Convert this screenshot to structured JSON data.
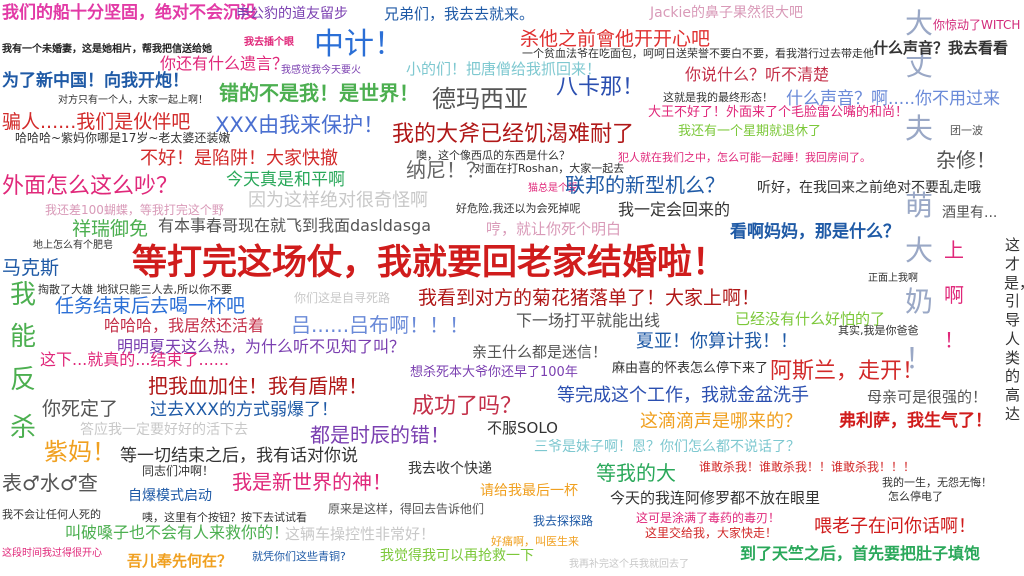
{
  "wordcloud": {
    "phrases": [
      {
        "text": "我们的船十分坚固，绝对不会沉没",
        "color": "#e23aa6",
        "weight": "bold"
      },
      {
        "text": "申公豹的道友留步",
        "color": "#7a3fb0",
        "weight": "normal"
      },
      {
        "text": "兄弟们，我去去就来。",
        "color": "#1f5aa6",
        "weight": "normal"
      },
      {
        "text": "Jackie的鼻子果然很大吧",
        "color": "#d99ab8",
        "weight": "normal"
      },
      {
        "text": "你惊动了WITCH",
        "color": "#d22a7a",
        "weight": "normal"
      },
      {
        "text": "大",
        "color": "#9aa8c6",
        "weight": "normal"
      },
      {
        "text": "丈",
        "color": "#9aa8c6",
        "weight": "normal"
      },
      {
        "text": "夫",
        "color": "#9aa8c6",
        "weight": "normal"
      },
      {
        "text": "萌",
        "color": "#9aa8c6",
        "weight": "normal"
      },
      {
        "text": "大",
        "color": "#9aa8c6",
        "weight": "normal"
      },
      {
        "text": "奶",
        "color": "#9aa8c6",
        "weight": "normal"
      },
      {
        "text": "！",
        "color": "#9aa8c6",
        "weight": "normal"
      },
      {
        "text": "我有一个未婚妻，这是她相片，帮我把信送给她",
        "color": "#222222",
        "weight": "bold"
      },
      {
        "text": "我去插个眼",
        "color": "#e0287a",
        "weight": "bold"
      },
      {
        "text": "中计！",
        "color": "#2b6fd6",
        "weight": "normal"
      },
      {
        "text": "杀他之前會他开开心吧",
        "color": "#e03030",
        "weight": "normal"
      },
      {
        "text": "什么声音？我去看看",
        "color": "#333333",
        "weight": "bold"
      },
      {
        "text": "一个贫血法爷在吃面包，呵呵日送荣誉不要白不要，看我潜行过去带走他",
        "color": "#333333",
        "weight": "normal"
      },
      {
        "text": "你还有什么遗言？",
        "color": "#e0287a",
        "weight": "normal"
      },
      {
        "text": "我感觉我今天要火",
        "color": "#7a3fb0",
        "weight": "normal"
      },
      {
        "text": "小的们！把唐僧给我抓回来！",
        "color": "#7ec8d0",
        "weight": "normal"
      },
      {
        "text": "你说什么？听不清楚",
        "color": "#c4314a",
        "weight": "normal"
      },
      {
        "text": "为了新中国！向我开炮！",
        "color": "#1f5aa6",
        "weight": "bold"
      },
      {
        "text": "八卡那！",
        "color": "#2b4fb0",
        "weight": "normal"
      },
      {
        "text": "错的不是我！是世界！",
        "color": "#4caf50",
        "weight": "bold"
      },
      {
        "text": "德玛西亚",
        "color": "#555555",
        "weight": "normal"
      },
      {
        "text": "这就是我的最终形态！",
        "color": "#333333",
        "weight": "normal"
      },
      {
        "text": "什么声音？啊.....你不用过来",
        "color": "#6a8ad8",
        "weight": "normal"
      },
      {
        "text": "对方只有一个人，大家一起上啊！",
        "color": "#333333",
        "weight": "normal"
      },
      {
        "text": "大王不好了！外面来了个毛脸雷公嘴的和尚！",
        "color": "#e0287a",
        "weight": "normal"
      },
      {
        "text": "骗人......我们是伙伴吧",
        "color": "#d22a2a",
        "weight": "normal"
      },
      {
        "text": "XXX由我来保护！",
        "color": "#4a6fd0",
        "weight": "normal"
      },
      {
        "text": "我还有一个星期就退休了",
        "color": "#7cc83a",
        "weight": "normal"
      },
      {
        "text": "团一波",
        "color": "#555555",
        "weight": "normal"
      },
      {
        "text": "哈哈哈~紫妈你哪是17岁~老太婆还装嫩",
        "color": "#333333",
        "weight": "normal"
      },
      {
        "text": "我的大斧已经饥渴难耐了",
        "color": "#b01818",
        "weight": "normal"
      },
      {
        "text": "不好！是陷阱！大家快撤",
        "color": "#d22a2a",
        "weight": "normal"
      },
      {
        "text": "噢，这个像西瓜的东西是什么？",
        "color": "#333333",
        "weight": "normal"
      },
      {
        "text": "犯人就在我们之中，怎么可能一起睡！我回房间了。",
        "color": "#e0287a",
        "weight": "normal"
      },
      {
        "text": "杂修！",
        "color": "#555555",
        "weight": "normal"
      },
      {
        "text": "纳尼！？",
        "color": "#666666",
        "weight": "normal"
      },
      {
        "text": "对面在打Roshan，大家一起去",
        "color": "#333333",
        "weight": "normal"
      },
      {
        "text": "外面怎么这么吵？",
        "color": "#e0287a",
        "weight": "normal"
      },
      {
        "text": "今天真是和平啊",
        "color": "#2aa85a",
        "weight": "normal"
      },
      {
        "text": "猫总是个受",
        "color": "#e0287a",
        "weight": "normal"
      },
      {
        "text": "联邦的新型机么？",
        "color": "#1f5aa6",
        "weight": "normal"
      },
      {
        "text": "听好，在我回来之前绝对不要乱走哦",
        "color": "#333333",
        "weight": "normal"
      },
      {
        "text": "我还差100蝴蝶，等我打完这个野",
        "color": "#d99ab8",
        "weight": "normal"
      },
      {
        "text": "因为这样绝对很奇怪啊",
        "color": "#c8c8c8",
        "weight": "normal"
      },
      {
        "text": "好危险,我还以为会死掉呢",
        "color": "#333333",
        "weight": "normal"
      },
      {
        "text": "我一定会回来的",
        "color": "#333333",
        "weight": "normal"
      },
      {
        "text": "酒里有...",
        "color": "#555555",
        "weight": "normal"
      },
      {
        "text": "祥瑞御免",
        "color": "#4caf50",
        "weight": "normal"
      },
      {
        "text": "有本事春哥现在就飞到我面dasldasga",
        "color": "#555555",
        "weight": "normal"
      },
      {
        "text": "哼，就让你死个明白",
        "color": "#d99ab8",
        "weight": "normal"
      },
      {
        "text": "看啊妈妈，那是什么？",
        "color": "#1f5aa6",
        "weight": "bold"
      },
      {
        "text": "地上怎么有个肥皂",
        "color": "#333333",
        "weight": "normal"
      },
      {
        "text": "等打完这场仗，我就要回老家结婚啦！",
        "color": "#d01c1c",
        "weight": "bold"
      },
      {
        "text": "上",
        "color": "#e0287a",
        "weight": "normal"
      },
      {
        "text": "啊",
        "color": "#e0287a",
        "weight": "normal"
      },
      {
        "text": "！",
        "color": "#e0287a",
        "weight": "normal"
      },
      {
        "text": "这才是，引导人类的高达",
        "color": "#333333",
        "weight": "normal"
      },
      {
        "text": "马克斯",
        "color": "#1f5aa6",
        "weight": "normal"
      },
      {
        "text": "正面上我啊",
        "color": "#333333",
        "weight": "normal"
      },
      {
        "text": "我",
        "color": "#4caf50",
        "weight": "normal"
      },
      {
        "text": "能",
        "color": "#4caf50",
        "weight": "normal"
      },
      {
        "text": "反",
        "color": "#4caf50",
        "weight": "normal"
      },
      {
        "text": "杀",
        "color": "#4caf50",
        "weight": "normal"
      },
      {
        "text": "掏散了大雄 地狱只能三人去,所以你不要",
        "color": "#333333",
        "weight": "normal"
      },
      {
        "text": "任务结束后去喝一杯吧",
        "color": "#2b6fd6",
        "weight": "normal"
      },
      {
        "text": "你们这是自寻死路",
        "color": "#c8c8c8",
        "weight": "normal"
      },
      {
        "text": "我看到对方的菊花猪落单了！大家上啊！",
        "color": "#b01818",
        "weight": "normal"
      },
      {
        "text": "哈哈哈，我居然还活着",
        "color": "#c4314a",
        "weight": "normal"
      },
      {
        "text": "吕......吕布啊！！！",
        "color": "#6a8ad8",
        "weight": "normal"
      },
      {
        "text": "下一场打平就能出线",
        "color": "#555555",
        "weight": "normal"
      },
      {
        "text": "已经没有什么好怕的了",
        "color": "#7cc83a",
        "weight": "normal"
      },
      {
        "text": "其实,我是你爸爸",
        "color": "#333333",
        "weight": "normal"
      },
      {
        "text": "明明夏天这么热，为什么听不见知了叫？",
        "color": "#7a3fb0",
        "weight": "normal"
      },
      {
        "text": "亲王什么都是迷信！",
        "color": "#555555",
        "weight": "normal"
      },
      {
        "text": "夏亚！你算计我！！",
        "color": "#1f5aa6",
        "weight": "normal"
      },
      {
        "text": "这下...就真的...结束了......",
        "color": "#e0287a",
        "weight": "normal"
      },
      {
        "text": "把我血加住！我有盾牌！",
        "color": "#b01818",
        "weight": "normal"
      },
      {
        "text": "想杀死本大爷你还早了100年",
        "color": "#7a3fb0",
        "weight": "normal"
      },
      {
        "text": "麻由喜的怀表怎么停下来了",
        "color": "#333333",
        "weight": "normal"
      },
      {
        "text": "阿斯兰，走开！",
        "color": "#d22a2a",
        "weight": "normal"
      },
      {
        "text": "你死定了",
        "color": "#555555",
        "weight": "normal"
      },
      {
        "text": "过去XXX的方式弱爆了！",
        "color": "#1f5aa6",
        "weight": "normal"
      },
      {
        "text": "成功了吗？",
        "color": "#c4314a",
        "weight": "normal"
      },
      {
        "text": "等完成这个工作，我就金盆洗手",
        "color": "#2b4fb0",
        "weight": "normal"
      },
      {
        "text": "母亲可是很强的！",
        "color": "#555555",
        "weight": "normal"
      },
      {
        "text": "答应我一定要好好的活下去",
        "color": "#c8c8c8",
        "weight": "normal"
      },
      {
        "text": "都是时辰的错！",
        "color": "#7a3fb0",
        "weight": "normal"
      },
      {
        "text": "不服SOLO",
        "color": "#333333",
        "weight": "normal"
      },
      {
        "text": "这滴滴声是哪来的？",
        "color": "#f0a020",
        "weight": "normal"
      },
      {
        "text": "弗利萨，我生气了！",
        "color": "#d01c1c",
        "weight": "bold"
      },
      {
        "text": "紫妈！",
        "color": "#f0a020",
        "weight": "normal"
      },
      {
        "text": "等一切结束之后，我有话对你说",
        "color": "#333333",
        "weight": "normal"
      },
      {
        "text": "三爷是妹子啊！恩？你们怎么都不说话了？",
        "color": "#7ec8d0",
        "weight": "normal"
      },
      {
        "text": "同志们冲啊！",
        "color": "#333333",
        "weight": "normal"
      },
      {
        "text": "谁敢杀我！谁敢杀我！！谁敢杀我！！！",
        "color": "#d22a2a",
        "weight": "normal"
      },
      {
        "text": "表♂水♂查",
        "color": "#555555",
        "weight": "normal"
      },
      {
        "text": "我是新世界的神！",
        "color": "#e0287a",
        "weight": "normal"
      },
      {
        "text": "我去收个快递",
        "color": "#333333",
        "weight": "normal"
      },
      {
        "text": "等我的大",
        "color": "#2aa85a",
        "weight": "normal"
      },
      {
        "text": "我的一生，无怨无悔！",
        "color": "#333333",
        "weight": "normal"
      },
      {
        "text": "自爆模式启动",
        "color": "#1f5aa6",
        "weight": "normal"
      },
      {
        "text": "请给我最后一杯",
        "color": "#f0a020",
        "weight": "normal"
      },
      {
        "text": "今天的我连阿修罗都不放在眼里",
        "color": "#333333",
        "weight": "normal"
      },
      {
        "text": "怎么停电了",
        "color": "#333333",
        "weight": "normal"
      },
      {
        "text": "我不会让任何人死的",
        "color": "#333333",
        "weight": "normal"
      },
      {
        "text": "咦，这里有个按钮？按下去试试看",
        "color": "#333333",
        "weight": "normal"
      },
      {
        "text": "原来是这样，得回去告诉他们",
        "color": "#555555",
        "weight": "normal"
      },
      {
        "text": "这可是涂满了毒药的毒刃！",
        "color": "#e0287a",
        "weight": "normal"
      },
      {
        "text": "叫破嗓子也不会有人来救你的！",
        "color": "#4caf50",
        "weight": "normal"
      },
      {
        "text": "我去探探路",
        "color": "#1f5aa6",
        "weight": "normal"
      },
      {
        "text": "这里交给我，大家快走！",
        "color": "#d22a2a",
        "weight": "normal"
      },
      {
        "text": "喂老子在问你话啊！",
        "color": "#d01c1c",
        "weight": "normal"
      },
      {
        "text": "这辆车操控性非常好！",
        "color": "#c8c8c8",
        "weight": "normal"
      },
      {
        "text": "好痛啊，叫医生来",
        "color": "#f0a020",
        "weight": "normal"
      },
      {
        "text": "这段时间我过得很开心",
        "color": "#e0287a",
        "weight": "normal"
      },
      {
        "text": "吾儿奉先何在？",
        "color": "#f0a020",
        "weight": "bold"
      },
      {
        "text": "就凭你们这些青铜?",
        "color": "#1f5aa6",
        "weight": "normal"
      },
      {
        "text": "我觉得我可以再抢救一下",
        "color": "#7cc83a",
        "weight": "normal"
      },
      {
        "text": "我再补完这个兵我就回去了",
        "color": "#c8c8c8",
        "weight": "normal"
      },
      {
        "text": "到了天竺之后，首先要把肚子填饱",
        "color": "#2aa85a",
        "weight": "bold"
      }
    ]
  }
}
